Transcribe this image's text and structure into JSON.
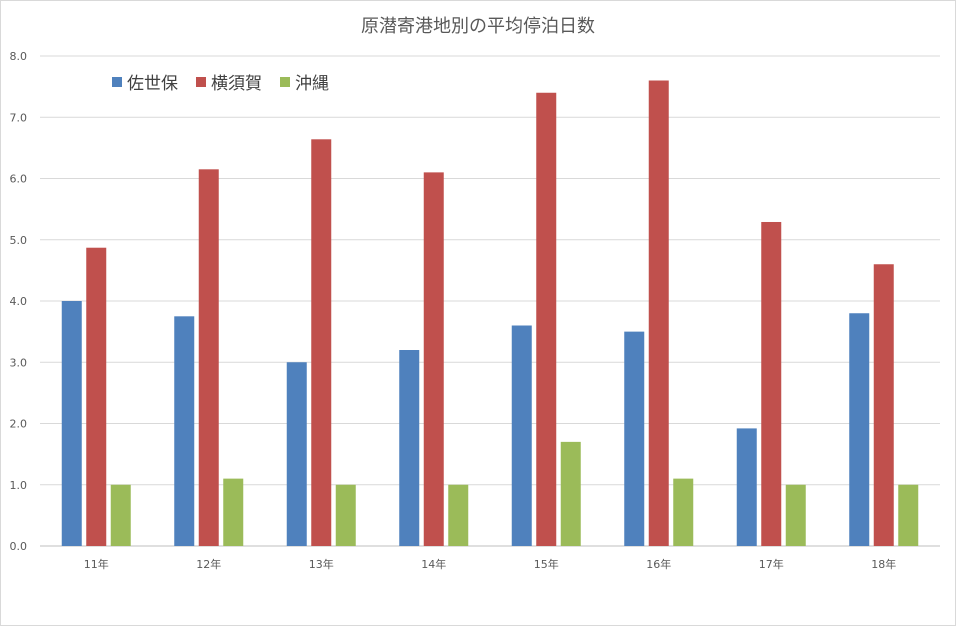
{
  "chart_data": {
    "type": "bar",
    "title": "原潜寄港地別の平均停泊日数",
    "xlabel": "",
    "ylabel": "",
    "categories": [
      "11年",
      "12年",
      "13年",
      "14年",
      "15年",
      "16年",
      "17年",
      "18年"
    ],
    "ylim": [
      0,
      8
    ],
    "yticks": [
      "0.0",
      "1.0",
      "2.0",
      "3.0",
      "4.0",
      "5.0",
      "6.0",
      "7.0",
      "8.0"
    ],
    "grid": true,
    "legend_position": "top-left",
    "series": [
      {
        "name": "佐世保",
        "color": "#4f81bd",
        "values": [
          4.0,
          3.75,
          3.0,
          3.2,
          3.6,
          3.5,
          1.92,
          3.8
        ]
      },
      {
        "name": "横須賀",
        "color": "#c0504d",
        "values": [
          4.87,
          6.15,
          6.64,
          6.1,
          7.4,
          7.6,
          5.29,
          4.6
        ]
      },
      {
        "name": "沖縄",
        "color": "#9bbb59",
        "values": [
          1.0,
          1.1,
          1.0,
          1.0,
          1.7,
          1.1,
          1.0,
          1.0
        ]
      }
    ]
  }
}
